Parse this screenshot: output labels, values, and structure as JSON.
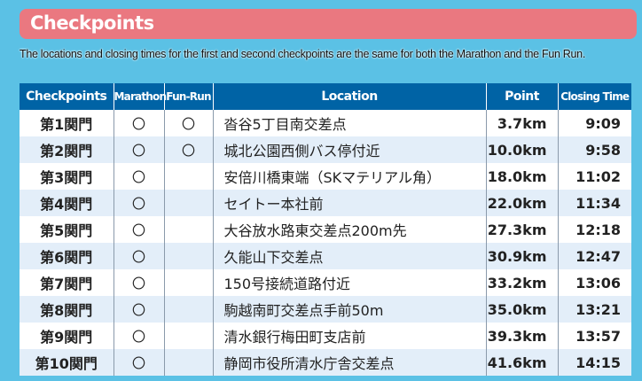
{
  "header": {
    "title": "Checkpoints"
  },
  "note": "The locations and closing times for the first and second checkpoints are the same for both the Marathon and the Fun Run.",
  "table": {
    "columns": [
      "Checkpoints",
      "Marathon",
      "Fun-Run",
      "Location",
      "Point",
      "Closing Time"
    ],
    "rows": [
      {
        "checkpoint": "第1関門",
        "marathon": "〇",
        "funrun": "〇",
        "location": "沓谷5丁目南交差点",
        "point": "3.7km",
        "time": "9:09"
      },
      {
        "checkpoint": "第2関門",
        "marathon": "〇",
        "funrun": "〇",
        "location": "城北公園西側バス停付近",
        "point": "10.0km",
        "time": "9:58"
      },
      {
        "checkpoint": "第3関門",
        "marathon": "〇",
        "funrun": "",
        "location": "安倍川橋東端（SKマテリアル角）",
        "point": "18.0km",
        "time": "11:02"
      },
      {
        "checkpoint": "第4関門",
        "marathon": "〇",
        "funrun": "",
        "location": "セイトー本社前",
        "point": "22.0km",
        "time": "11:34"
      },
      {
        "checkpoint": "第5関門",
        "marathon": "〇",
        "funrun": "",
        "location": "大谷放水路東交差点200m先",
        "point": "27.3km",
        "time": "12:18"
      },
      {
        "checkpoint": "第6関門",
        "marathon": "〇",
        "funrun": "",
        "location": "久能山下交差点",
        "point": "30.9km",
        "time": "12:47"
      },
      {
        "checkpoint": "第7関門",
        "marathon": "〇",
        "funrun": "",
        "location": "150号接続道路付近",
        "point": "33.2km",
        "time": "13:06"
      },
      {
        "checkpoint": "第8関門",
        "marathon": "〇",
        "funrun": "",
        "location": "駒越南町交差点手前50m",
        "point": "35.0km",
        "time": "13:21"
      },
      {
        "checkpoint": "第9関門",
        "marathon": "〇",
        "funrun": "",
        "location": "清水銀行梅田町支店前",
        "point": "39.3km",
        "time": "13:57"
      },
      {
        "checkpoint": "第10関門",
        "marathon": "〇",
        "funrun": "",
        "location": "静岡市役所清水庁舎交差点",
        "point": "41.6km",
        "time": "14:15"
      }
    ]
  },
  "colors": {
    "background": "#5bc1e5",
    "title_bar": "#ea7880",
    "table_header": "#0063a5",
    "row_alt": "#e3eef9"
  }
}
